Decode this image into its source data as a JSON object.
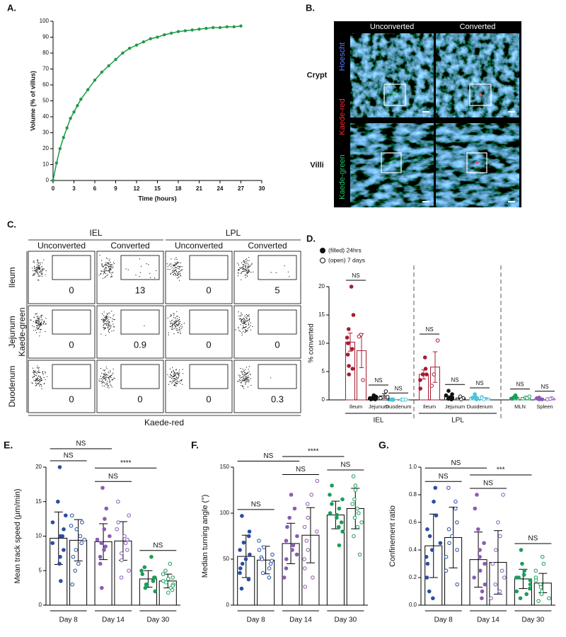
{
  "chart_data": [
    {
      "panel": "A.",
      "type": "line",
      "x_label": "Time (hours)",
      "y_label": "Volume (% of villus)",
      "x": [
        0,
        0.5,
        1,
        1.5,
        2,
        2.5,
        3,
        3.5,
        4,
        5,
        6,
        7,
        8,
        9,
        10,
        11,
        12,
        13,
        14,
        15,
        16,
        17,
        18,
        19,
        20,
        21,
        22,
        23,
        24,
        25,
        26,
        27
      ],
      "series": [
        {
          "color": "#1e9a48",
          "values": [
            0,
            11,
            20,
            27,
            33,
            39,
            43,
            47,
            51,
            57,
            63,
            68,
            72,
            76,
            80,
            83,
            85,
            87,
            89,
            90,
            91.5,
            92.5,
            93.5,
            94,
            94.5,
            95,
            95.5,
            96,
            96,
            96.5,
            96.5,
            97
          ]
        }
      ],
      "xlim": [
        0,
        30
      ],
      "xticks": [
        0,
        3,
        6,
        9,
        12,
        15,
        18,
        21,
        24,
        27,
        30
      ],
      "ylim": [
        0,
        100
      ],
      "yticks": [
        0,
        10,
        20,
        30,
        40,
        50,
        60,
        70,
        80,
        90,
        100
      ]
    },
    {
      "panel": "D.",
      "type": "dotbar",
      "y_label": "% converted",
      "categories": [
        "Ileum",
        "Jejunum",
        "Duodenum",
        "Ileum",
        "Jejunum",
        "Duodenum",
        "MLN",
        "Spleen"
      ],
      "group_labels": [
        "IEL",
        "LPL"
      ],
      "colors": [
        "#a51c30",
        "#111111",
        "#4cc3d9",
        "#a51c30",
        "#111111",
        "#4cc3d9",
        "#1a9e5a",
        "#8a5bb5"
      ],
      "significance": [
        "NS",
        "NS",
        "NS",
        "NS",
        "NS",
        "NS",
        "NS",
        "NS"
      ],
      "series": [
        {
          "name": "(filled) 24hrs",
          "filled": true,
          "values": [
            10.2,
            0.35,
            0.05,
            4.5,
            0.56,
            0.42,
            0.44,
            0.22
          ],
          "errors": [
            1.6,
            0.08,
            0.02,
            0.8,
            0.16,
            0.13,
            0.1,
            0.06
          ],
          "points": [
            [
              20,
              15,
              12.5,
              11,
              10,
              9,
              8,
              6,
              5.5,
              4.5
            ],
            [
              0.8,
              0.6,
              0.5,
              0.4,
              0.3,
              0.3,
              0.2,
              0.2,
              0.1,
              0.1,
              0.3,
              0.4
            ],
            [
              0.05,
              0.05,
              0.1,
              0,
              0.05
            ],
            [
              7.5,
              5.5,
              4.5,
              4.5,
              3.5,
              2
            ],
            [
              1.6,
              1,
              0.8,
              0.5,
              0.4,
              0.3,
              0.2,
              0.1,
              0.1
            ],
            [
              1,
              0.5,
              0.4,
              0.3,
              0.2,
              0.1
            ],
            [
              0.8,
              0.5,
              0.4,
              0.3,
              0.2
            ],
            [
              0.4,
              0.3,
              0.2,
              0.1,
              0.1
            ]
          ]
        },
        {
          "name": "(open) 7 days",
          "filled": false,
          "values": [
            8.7,
            0.7,
            0.05,
            5.8,
            0.33,
            0.3,
            0.43,
            0.2
          ],
          "errors": [
            3.0,
            0.4,
            0.01,
            2.7,
            0.15,
            0.12,
            0.09,
            0.06
          ],
          "points": [
            [
              11.5,
              11.2,
              3.5
            ],
            [
              1.5,
              0.5,
              0.3
            ],
            [
              0.05,
              0.05,
              0.05
            ],
            [
              10.5,
              4.5,
              2.5
            ],
            [
              0.6,
              0.3,
              0.1
            ],
            [
              0.5,
              0.3,
              0.1
            ],
            [
              0.6,
              0.4,
              0.3
            ],
            [
              0.3,
              0.2,
              0.1
            ]
          ]
        }
      ],
      "ylim": [
        0,
        20
      ],
      "yticks": [
        0,
        5,
        10,
        15,
        20
      ]
    },
    {
      "panel": "E.",
      "type": "scatterbar",
      "y_label": "Mean track speed (μm/min)",
      "categories": [
        "Day 8",
        "Day 14",
        "Day 30"
      ],
      "colors": [
        "#2b4ea2",
        "#8a5bb5",
        "#1a9e5a"
      ],
      "bar_edge_color": "#000000",
      "significance": [
        "NS",
        "NS",
        "****",
        "NS",
        "NS"
      ],
      "series": [
        {
          "filled": true,
          "values": [
            9.7,
            9.2,
            3.8
          ],
          "errors": [
            3.8,
            2.6,
            1.2
          ],
          "points": [
            [
              20,
              15,
              13,
              12,
              11,
              10,
              10,
              9,
              8,
              7,
              6,
              3.5
            ],
            [
              17,
              14,
              12.5,
              11,
              10,
              9.5,
              9,
              8.5,
              8,
              7,
              6,
              2.5
            ],
            [
              7,
              5.5,
              5,
              4.5,
              4,
              4,
              3.5,
              3.5,
              3,
              3,
              2.5,
              2
            ]
          ]
        },
        {
          "filled": false,
          "values": [
            9.4,
            9.3,
            3.5
          ],
          "errors": [
            3.0,
            2.8,
            1.0
          ],
          "points": [
            [
              13,
              12,
              11.5,
              11,
              10,
              9.5,
              9,
              8,
              7,
              6,
              5,
              3
            ],
            [
              15,
              13,
              12,
              11,
              10,
              9.5,
              9,
              8,
              7.5,
              6.5,
              5,
              4
            ],
            [
              6,
              5,
              4.5,
              4,
              3.8,
              3.5,
              3.3,
              3,
              2.8,
              2.5,
              2.2,
              1.8
            ]
          ]
        }
      ],
      "ylim": [
        0,
        20
      ],
      "yticks": [
        0,
        5,
        10,
        15,
        20
      ]
    },
    {
      "panel": "F.",
      "type": "scatterbar",
      "y_label": "Median turning angle (°)",
      "categories": [
        "Day 8",
        "Day 14",
        "Day 30"
      ],
      "colors": [
        "#2b4ea2",
        "#8a5bb5",
        "#1a9e5a"
      ],
      "bar_edge_color": "#000000",
      "significance": [
        "NS",
        "NS",
        "****",
        "NS",
        "NS"
      ],
      "series": [
        {
          "filled": true,
          "values": [
            53,
            67,
            98
          ],
          "errors": [
            23,
            22,
            15
          ],
          "points": [
            [
              97,
              80,
              75,
              68,
              60,
              55,
              50,
              45,
              40,
              35,
              28,
              18
            ],
            [
              120,
              105,
              95,
              85,
              75,
              70,
              65,
              60,
              55,
              50,
              40,
              30
            ],
            [
              130,
              120,
              115,
              110,
              105,
              100,
              98,
              95,
              90,
              85,
              80,
              65
            ]
          ]
        },
        {
          "filled": false,
          "values": [
            49,
            76,
            105
          ],
          "errors": [
            15,
            30,
            22
          ],
          "points": [
            [
              70,
              63,
              60,
              55,
              52,
              50,
              48,
              45,
              40,
              35,
              30
            ],
            [
              135,
              120,
              110,
              95,
              85,
              80,
              70,
              60,
              50,
              40,
              30,
              20
            ],
            [
              140,
              130,
              125,
              115,
              110,
              105,
              100,
              95,
              90,
              85,
              75,
              55
            ]
          ]
        }
      ],
      "ylim": [
        0,
        150
      ],
      "yticks": [
        0,
        50,
        100,
        150
      ]
    },
    {
      "panel": "G.",
      "type": "scatterbar",
      "y_label": "Confinement ratio",
      "categories": [
        "Day 8",
        "Day 14",
        "Day 30"
      ],
      "colors": [
        "#2b4ea2",
        "#8a5bb5",
        "#1a9e5a"
      ],
      "bar_edge_color": "#000000",
      "significance": [
        "NS",
        "NS",
        "***",
        "NS",
        "NS"
      ],
      "series": [
        {
          "filled": true,
          "values": [
            0.43,
            0.33,
            0.19
          ],
          "errors": [
            0.23,
            0.2,
            0.07
          ],
          "points": [
            [
              0.85,
              0.75,
              0.65,
              0.55,
              0.5,
              0.45,
              0.4,
              0.35,
              0.3,
              0.2,
              0.1,
              0.05
            ],
            [
              0.8,
              0.7,
              0.55,
              0.45,
              0.4,
              0.35,
              0.3,
              0.25,
              0.2,
              0.15,
              0.1,
              0.05
            ],
            [
              0.4,
              0.3,
              0.25,
              0.22,
              0.2,
              0.2,
              0.18,
              0.15,
              0.12,
              0.1,
              0.08,
              0.05
            ]
          ]
        },
        {
          "filled": false,
          "values": [
            0.49,
            0.31,
            0.16
          ],
          "errors": [
            0.22,
            0.23,
            0.07
          ],
          "points": [
            [
              0.85,
              0.75,
              0.7,
              0.6,
              0.55,
              0.5,
              0.45,
              0.4,
              0.35,
              0.25,
              0.15
            ],
            [
              0.8,
              0.6,
              0.5,
              0.4,
              0.3,
              0.25,
              0.2,
              0.15,
              0.1,
              0.05
            ],
            [
              0.35,
              0.3,
              0.25,
              0.2,
              0.18,
              0.15,
              0.13,
              0.1,
              0.08,
              0.05,
              0.03
            ]
          ]
        }
      ],
      "ylim": [
        0,
        1
      ],
      "yticks": [
        {
          "value": 0,
          "label": "0.0"
        },
        0.2,
        0.4,
        0.6,
        0.8,
        {
          "value": 1,
          "label": "1.0"
        }
      ]
    }
  ],
  "image_panel": {
    "panel": "B.",
    "columns": [
      "Unconverted",
      "Converted"
    ],
    "rows": [
      "Crypt",
      "Villi"
    ],
    "channels": [
      "Hoescht",
      "Kaede-red",
      "Kaede-green"
    ]
  },
  "flow_panel": {
    "panel": "C.",
    "groups": [
      "IEL",
      "LPL"
    ],
    "columns": [
      "Unconverted",
      "Converted",
      "Unconverted",
      "Converted"
    ],
    "rows": [
      "Ileum",
      "Jejunum",
      "Duodenum"
    ],
    "y_label": "Kaede-green",
    "x_label": "Kaede-red",
    "percentages": [
      [
        0,
        13,
        0,
        5
      ],
      [
        0,
        0.9,
        0,
        0
      ],
      [
        0,
        0,
        0,
        0.3
      ]
    ]
  }
}
